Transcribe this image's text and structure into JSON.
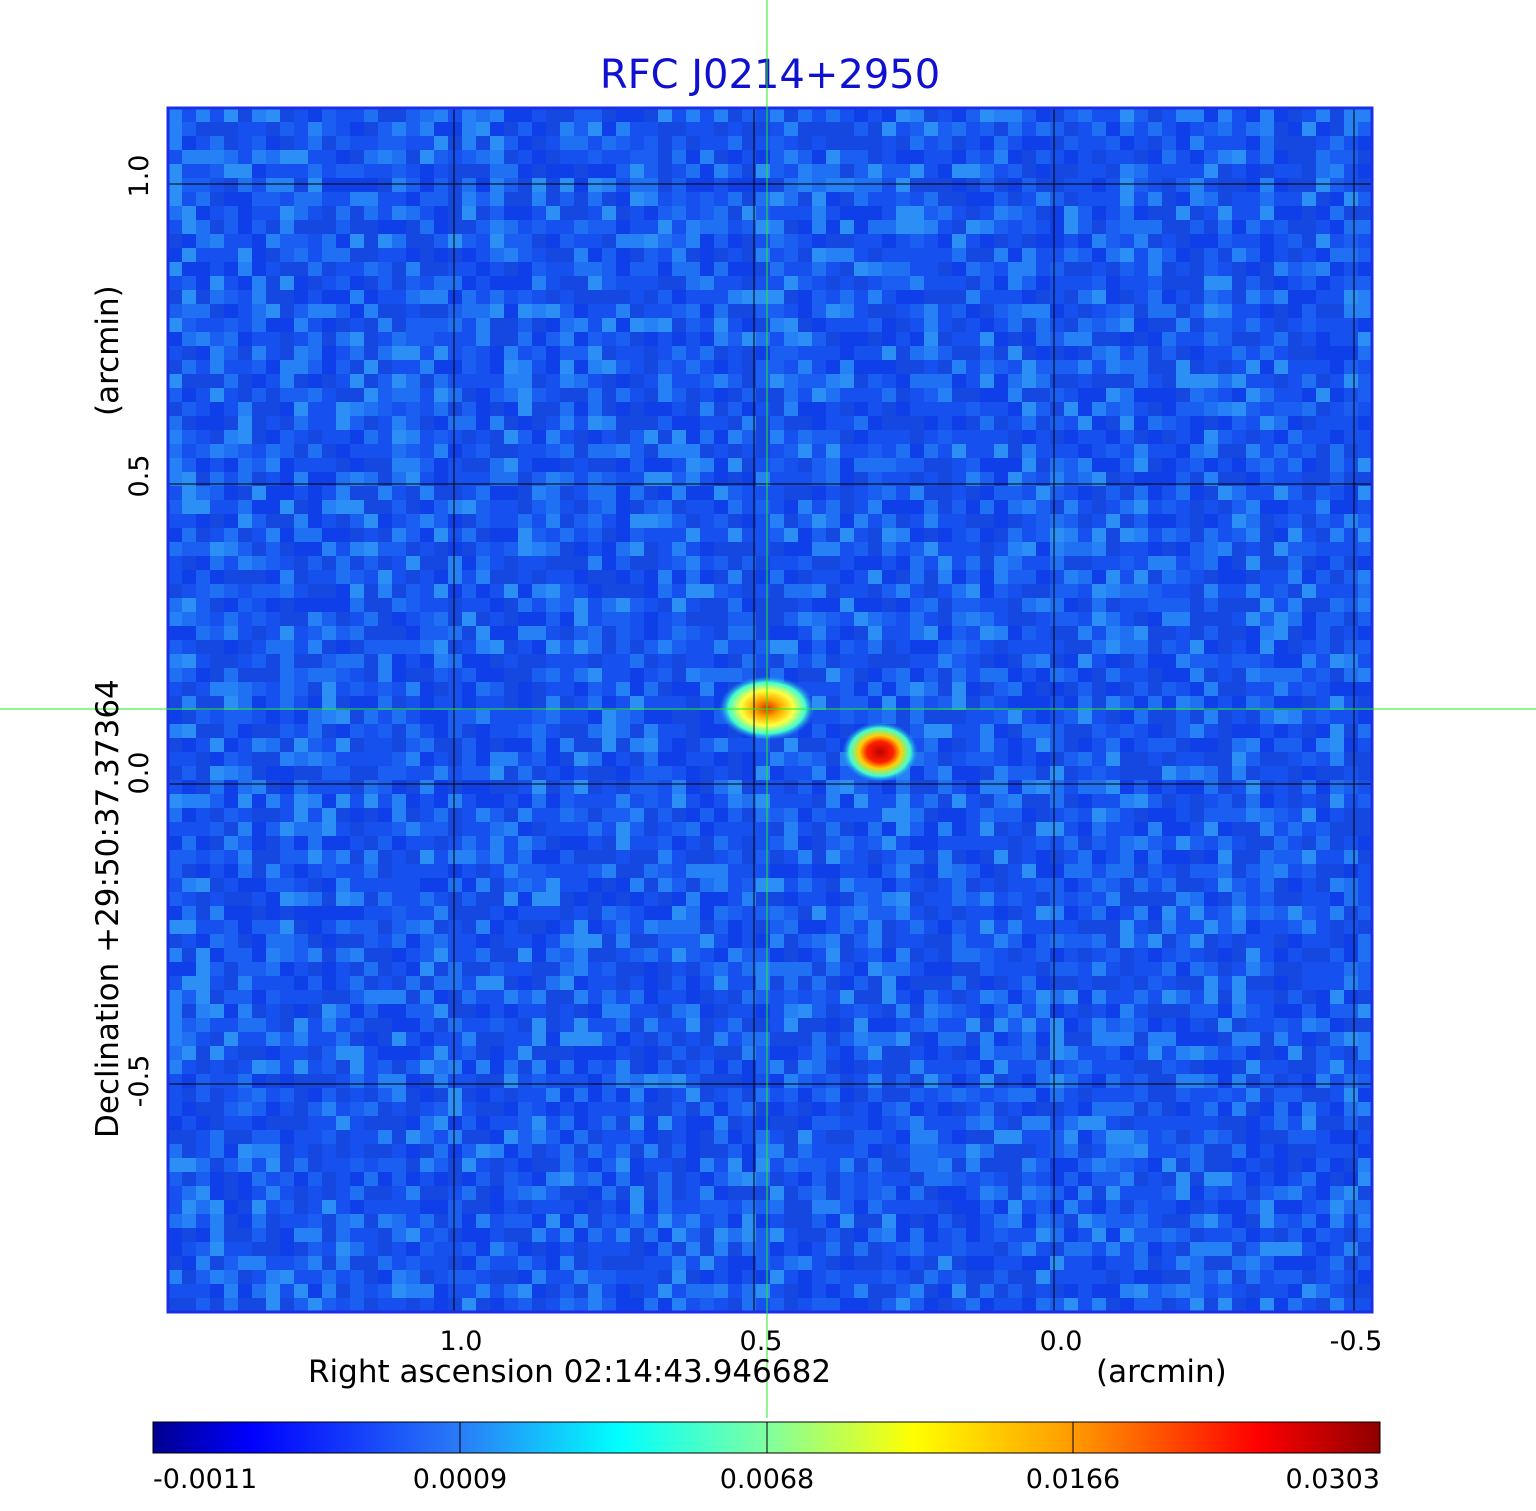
{
  "title": "RFC J0214+2950",
  "x_axis": {
    "label_main": "Right ascension  02:14:43.946682",
    "label_unit": "(arcmin)",
    "ticks": [
      "1.0",
      "0.5",
      "0.0",
      "-0.5"
    ]
  },
  "y_axis": {
    "label_main": "Declination  +29:50:37.37364",
    "label_unit": "(arcmin)",
    "ticks": [
      "1.0",
      "0.5",
      "0.0",
      "-0.5"
    ]
  },
  "colorbar": {
    "ticks": [
      "-0.0011",
      "0.0009",
      "0.0068",
      "0.0166",
      "0.0303"
    ]
  },
  "colors": {
    "title": "#1010d0",
    "frame": "#1a2fe8",
    "crosshair": "#22ee22",
    "background_field": "#1e6cf5"
  }
}
